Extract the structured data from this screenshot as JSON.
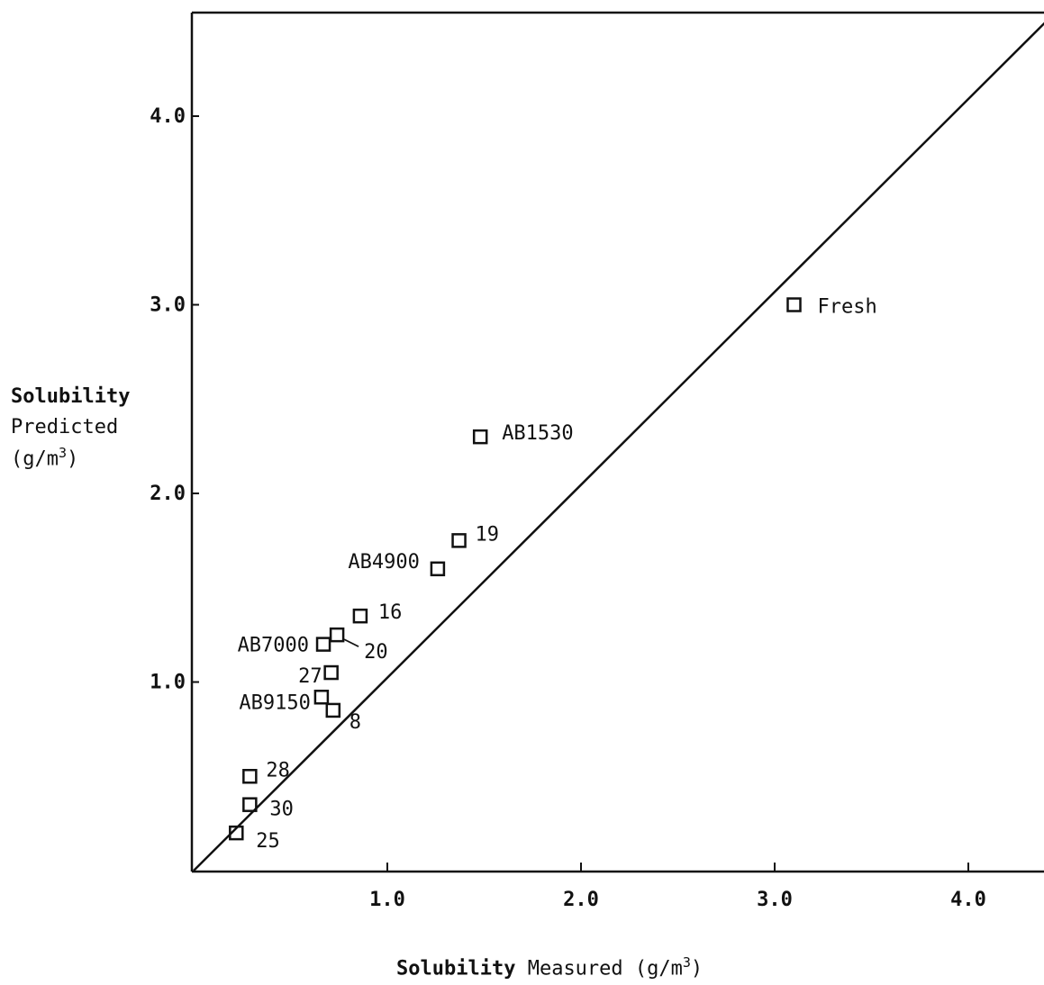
{
  "chart_data": {
    "type": "scatter",
    "title": "",
    "xlabel": {
      "bold_part": "Solubility",
      "rest": "Measured (g/m",
      "sup": "3",
      "close": ")"
    },
    "ylabel": {
      "line1": "Solubility",
      "line2": "Predicted",
      "line3_prefix": "(g/m",
      "line3_sup": "3",
      "line3_suffix": ")"
    },
    "xlim": [
      0,
      4.4
    ],
    "ylim": [
      0,
      4.5
    ],
    "x_ticks": [
      1.0,
      2.0,
      3.0,
      4.0
    ],
    "x_tick_labels": [
      "1.0",
      "2.0",
      "3.0",
      "4.0"
    ],
    "y_ticks": [
      1.0,
      2.0,
      3.0,
      4.0
    ],
    "y_tick_labels": [
      "1.0",
      "2.0",
      "3.0",
      "4.0"
    ],
    "reference_line": {
      "from": [
        0,
        0
      ],
      "to": [
        4.4,
        4.5
      ]
    },
    "points": [
      {
        "label": "Fresh",
        "x": 3.1,
        "y": 3.0
      },
      {
        "label": "AB1530",
        "x": 1.48,
        "y": 2.3
      },
      {
        "label": "19",
        "x": 1.37,
        "y": 1.75
      },
      {
        "label": "AB4900",
        "x": 1.26,
        "y": 1.6
      },
      {
        "label": "16",
        "x": 0.86,
        "y": 1.35
      },
      {
        "label": "20",
        "x": 0.74,
        "y": 1.25
      },
      {
        "label": "AB7000",
        "x": 0.67,
        "y": 1.2
      },
      {
        "label": "27",
        "x": 0.71,
        "y": 1.05
      },
      {
        "label": "AB9150",
        "x": 0.66,
        "y": 0.92
      },
      {
        "label": "8",
        "x": 0.72,
        "y": 0.85
      },
      {
        "label": "28",
        "x": 0.29,
        "y": 0.5
      },
      {
        "label": "30",
        "x": 0.29,
        "y": 0.35
      },
      {
        "label": "25",
        "x": 0.22,
        "y": 0.2
      }
    ]
  }
}
